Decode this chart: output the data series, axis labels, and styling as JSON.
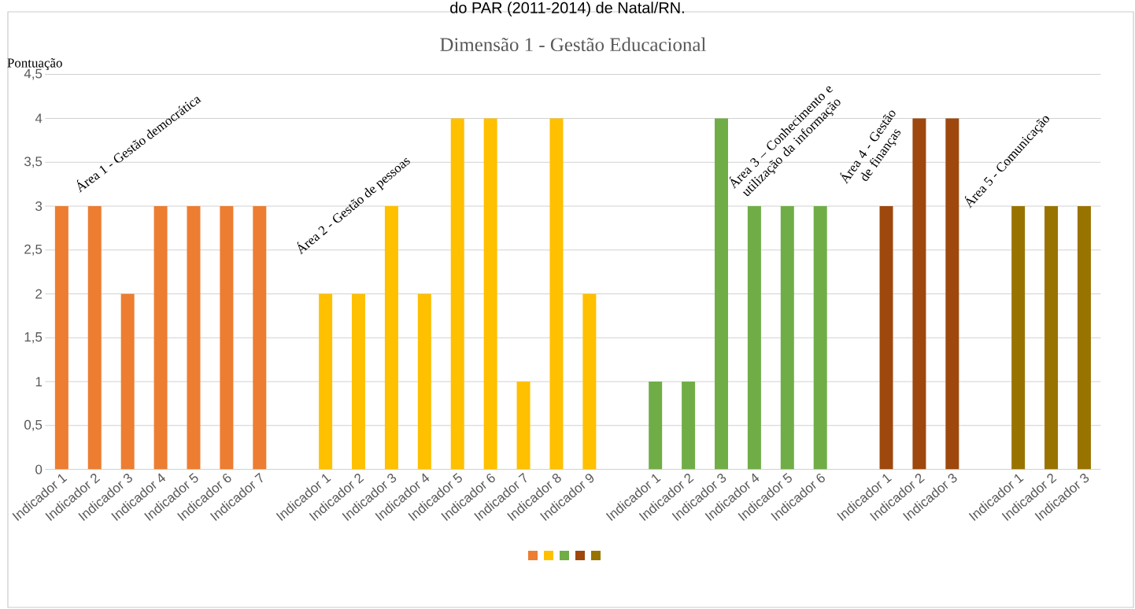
{
  "chart_data": {
    "type": "bar",
    "title": "Dimensão 1 - Gestão Educacional",
    "ylabel": "Pontuação",
    "annotations": [
      "do PAR (2011-2014) de Natal/RN.",
      "Área 1 - Gestão democrática",
      "Área 2 - Gestão de pessoas",
      "Área 3 – Conhecimento e utilização  da informação",
      "Área 4 - Gestão de finanças",
      "Área 5 - Comunicação"
    ],
    "categories": [
      "Indicador 1",
      "Indicador 2",
      "Indicador 3",
      "Indicador 4",
      "Indicador 5",
      "Indicador 6",
      "Indicador 7",
      null,
      "Indicador 1",
      "Indicador 2",
      "Indicador 3",
      "Indicador 4",
      "Indicador 5",
      "Indicador 6",
      "Indicador 7",
      "Indicador 8",
      "Indicador 9",
      null,
      "Indicador 1",
      "Indicador 2",
      "Indicador 3",
      "Indicador 4",
      "Indicador 5",
      "Indicador 6",
      null,
      "Indicador 1",
      "Indicador 2",
      "Indicador 3",
      null,
      "Indicador 1",
      "Indicador 2",
      "Indicador 3"
    ],
    "series": [
      {
        "color": "#ed7d31",
        "values": [
          3,
          3,
          2,
          3,
          3,
          3,
          3,
          null,
          null,
          null,
          null,
          null,
          null,
          null,
          null,
          null,
          null,
          null,
          null,
          null,
          null,
          null,
          null,
          null,
          null,
          null,
          null,
          null,
          null,
          null,
          null,
          null
        ]
      },
      {
        "color": "#ffc000",
        "values": [
          null,
          null,
          null,
          null,
          null,
          null,
          null,
          null,
          2,
          2,
          3,
          2,
          4,
          4,
          1,
          4,
          2,
          null,
          null,
          null,
          null,
          null,
          null,
          null,
          null,
          null,
          null,
          null,
          null,
          null,
          null,
          null
        ]
      },
      {
        "color": "#70ad47",
        "values": [
          null,
          null,
          null,
          null,
          null,
          null,
          null,
          null,
          null,
          null,
          null,
          null,
          null,
          null,
          null,
          null,
          null,
          null,
          1,
          1,
          4,
          3,
          3,
          3,
          null,
          null,
          null,
          null,
          null,
          null,
          null,
          null
        ]
      },
      {
        "color": "#9e480e",
        "values": [
          null,
          null,
          null,
          null,
          null,
          null,
          null,
          null,
          null,
          null,
          null,
          null,
          null,
          null,
          null,
          null,
          null,
          null,
          null,
          null,
          null,
          null,
          null,
          null,
          null,
          3,
          4,
          4,
          null,
          null,
          null,
          null
        ]
      },
      {
        "color": "#997300",
        "values": [
          null,
          null,
          null,
          null,
          null,
          null,
          null,
          null,
          null,
          null,
          null,
          null,
          null,
          null,
          null,
          null,
          null,
          null,
          null,
          null,
          null,
          null,
          null,
          null,
          null,
          null,
          null,
          null,
          null,
          3,
          3,
          3
        ]
      }
    ],
    "ylim": [
      0,
      4.5
    ],
    "yticks": [
      0,
      {
        "value": 0.5,
        "label": "0,5"
      },
      1,
      {
        "value": 1.5,
        "label": "1,5"
      },
      2,
      {
        "value": 2.5,
        "label": "2,5"
      },
      3,
      {
        "value": 3.5,
        "label": "3,5"
      },
      4,
      {
        "value": 4.5,
        "label": "4,5"
      }
    ],
    "grid": "y"
  }
}
